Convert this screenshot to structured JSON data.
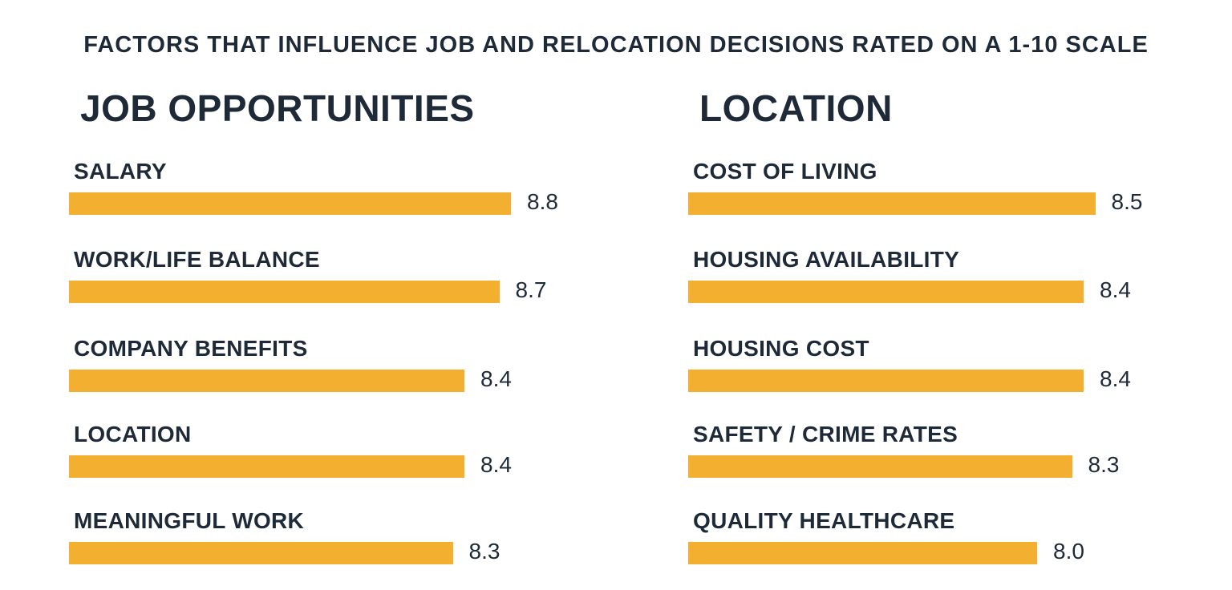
{
  "chart_data": {
    "type": "bar",
    "orientation": "horizontal",
    "title": "FACTORS THAT INFLUENCE JOB AND RELOCATION DECISIONS RATED ON A 1-10 SCALE",
    "bar_color": "#F3AF2F",
    "text_color": "#1E2A38",
    "panels": [
      {
        "heading": "JOB OPPORTUNITIES",
        "categories": [
          "SALARY",
          "WORK/LIFE BALANCE",
          "COMPANY BENEFITS",
          "LOCATION",
          "MEANINGFUL WORK"
        ],
        "values": [
          8.8,
          8.7,
          8.4,
          8.4,
          8.3
        ],
        "labels": [
          "8.8",
          "8.7",
          "8.4",
          "8.4",
          "8.3"
        ]
      },
      {
        "heading": "LOCATION",
        "categories": [
          "COST OF LIVING",
          "HOUSING AVAILABILITY",
          "HOUSING COST",
          "SAFETY / CRIME RATES",
          "QUALITY HEALTHCARE"
        ],
        "values": [
          8.5,
          8.4,
          8.4,
          8.3,
          8.0
        ],
        "labels": [
          "8.5",
          "8.4",
          "8.4",
          "8.3",
          "8.0"
        ]
      }
    ]
  }
}
